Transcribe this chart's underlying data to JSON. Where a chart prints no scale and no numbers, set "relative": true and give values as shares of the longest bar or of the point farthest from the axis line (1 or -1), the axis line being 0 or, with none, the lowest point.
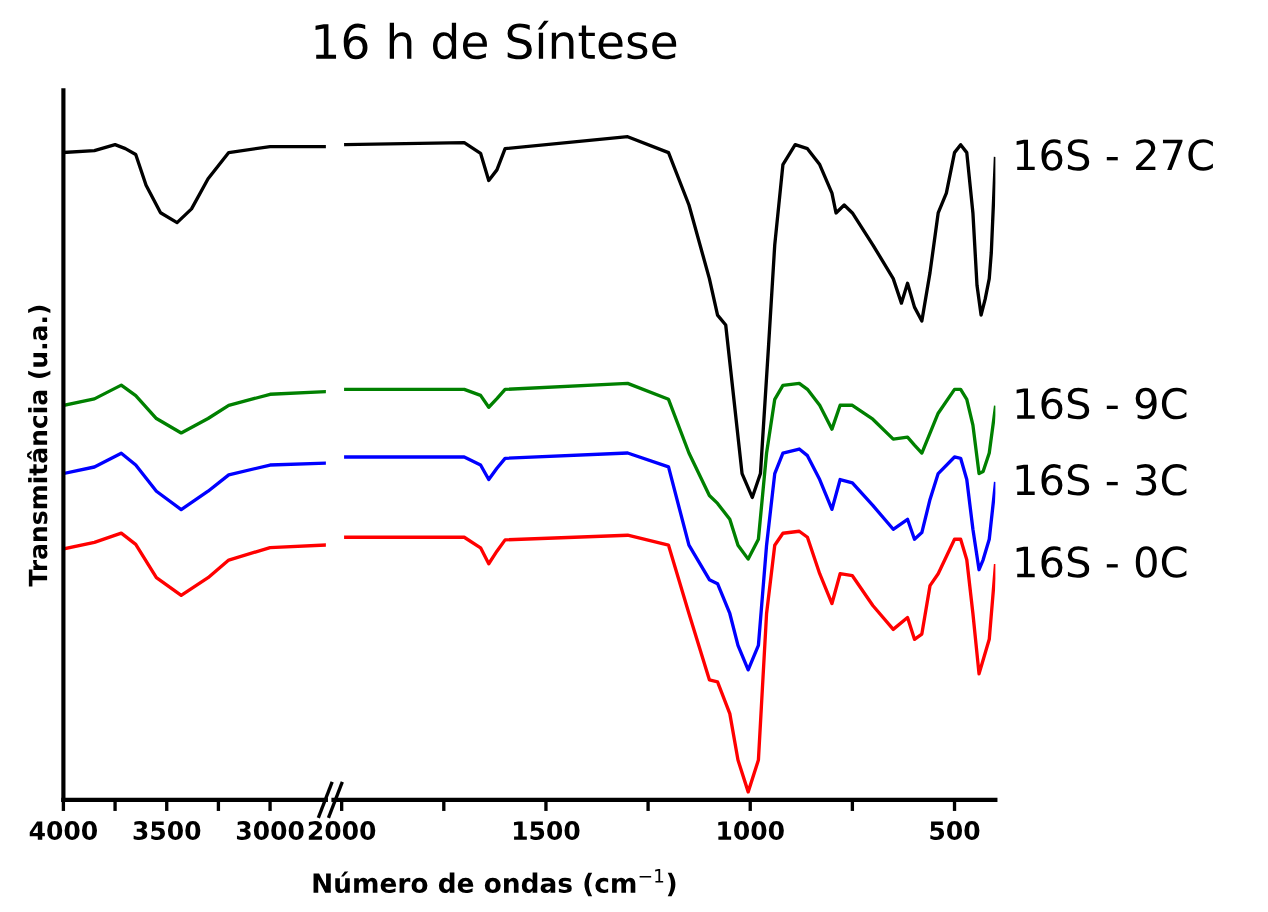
{
  "chart_data": [
    {
      "type": "line",
      "ylabel": "Transmitância (u.a.)",
      "relative": true,
      "xlim": [
        4000,
        2730
      ],
      "xticks": [
        4000,
        {
          "value": 3750,
          "label": null
        },
        3500,
        {
          "value": 3250,
          "label": null
        },
        3000
      ],
      "series": [
        {
          "color": "#000000",
          "x": [
            4000,
            3850,
            3750,
            3700,
            3650,
            3600,
            3530,
            3450,
            3380,
            3300,
            3200,
            3000,
            2730
          ],
          "values": [
            0.988,
            0.991,
            1.0,
            0.994,
            0.985,
            0.938,
            0.896,
            0.881,
            0.902,
            0.948,
            0.988,
            0.997,
            0.997
          ]
        },
        {
          "color": "#008000",
          "x": [
            4000,
            3850,
            3720,
            3650,
            3550,
            3430,
            3300,
            3200,
            3000,
            2730
          ],
          "values": [
            0.602,
            0.612,
            0.633,
            0.617,
            0.582,
            0.56,
            0.582,
            0.602,
            0.619,
            0.623
          ]
        },
        {
          "color": "#0000ff",
          "x": [
            4000,
            3850,
            3720,
            3650,
            3550,
            3430,
            3300,
            3200,
            3000,
            2730
          ],
          "values": [
            0.498,
            0.508,
            0.529,
            0.511,
            0.471,
            0.443,
            0.471,
            0.496,
            0.511,
            0.514
          ]
        },
        {
          "color": "#ff0000",
          "x": [
            4000,
            3850,
            3720,
            3650,
            3550,
            3430,
            3300,
            3200,
            3000,
            2730
          ],
          "values": [
            0.383,
            0.393,
            0.407,
            0.39,
            0.339,
            0.312,
            0.339,
            0.366,
            0.385,
            0.389
          ]
        }
      ]
    },
    {
      "type": "line",
      "title": "16 h de Síntese",
      "xlabel": "Número de ondas (cm$^{−1}$)",
      "relative": true,
      "xlim": [
        2020,
        400
      ],
      "xticks": [
        2000,
        {
          "value": 1750,
          "label": null
        },
        1500,
        {
          "value": 1250,
          "label": null
        },
        1000,
        {
          "value": 750,
          "label": null
        },
        500
      ],
      "series": [
        {
          "name": "16S - 27C",
          "color": "#000000",
          "x": [
            1990,
            1700,
            1660,
            1640,
            1620,
            1600,
            1300,
            1200,
            1150,
            1100,
            1080,
            1060,
            1040,
            1020,
            995,
            975,
            955,
            940,
            920,
            890,
            860,
            830,
            800,
            790,
            770,
            750,
            700,
            650,
            630,
            615,
            598,
            580,
            560,
            540,
            520,
            500,
            485,
            470,
            455,
            445,
            435,
            425,
            415,
            410,
            400
          ],
          "values": [
            0.988,
            0.991,
            0.975,
            0.934,
            0.95,
            0.982,
            1.0,
            0.976,
            0.897,
            0.786,
            0.731,
            0.716,
            0.604,
            0.492,
            0.456,
            0.492,
            0.686,
            0.837,
            0.958,
            0.988,
            0.982,
            0.958,
            0.915,
            0.885,
            0.897,
            0.885,
            0.837,
            0.786,
            0.749,
            0.779,
            0.743,
            0.722,
            0.795,
            0.885,
            0.915,
            0.976,
            0.988,
            0.976,
            0.885,
            0.776,
            0.731,
            0.755,
            0.786,
            0.825,
            0.967
          ]
        },
        {
          "name": "16S - 9C",
          "color": "#008000",
          "x": [
            1990,
            1700,
            1660,
            1640,
            1620,
            1600,
            1300,
            1200,
            1150,
            1100,
            1080,
            1050,
            1030,
            1005,
            980,
            960,
            940,
            920,
            880,
            860,
            830,
            800,
            780,
            750,
            700,
            650,
            615,
            598,
            580,
            560,
            540,
            500,
            485,
            470,
            455,
            440,
            430,
            415,
            400
          ],
          "values": [
            0.619,
            0.619,
            0.61,
            0.592,
            0.605,
            0.619,
            0.628,
            0.604,
            0.523,
            0.459,
            0.447,
            0.423,
            0.384,
            0.363,
            0.393,
            0.523,
            0.604,
            0.625,
            0.628,
            0.619,
            0.595,
            0.559,
            0.595,
            0.595,
            0.574,
            0.544,
            0.547,
            0.535,
            0.523,
            0.553,
            0.583,
            0.619,
            0.619,
            0.604,
            0.565,
            0.492,
            0.495,
            0.523,
            0.592
          ]
        },
        {
          "name": "16S - 3C",
          "color": "#0000ff",
          "x": [
            1990,
            1700,
            1660,
            1640,
            1620,
            1600,
            1300,
            1200,
            1150,
            1100,
            1080,
            1050,
            1030,
            1005,
            980,
            960,
            940,
            920,
            880,
            860,
            830,
            800,
            780,
            750,
            700,
            650,
            615,
            598,
            580,
            560,
            540,
            500,
            485,
            470,
            455,
            440,
            430,
            415,
            400
          ],
          "values": [
            0.517,
            0.517,
            0.505,
            0.483,
            0.5,
            0.515,
            0.523,
            0.502,
            0.384,
            0.332,
            0.326,
            0.281,
            0.233,
            0.196,
            0.233,
            0.384,
            0.492,
            0.523,
            0.529,
            0.519,
            0.483,
            0.438,
            0.483,
            0.478,
            0.444,
            0.408,
            0.423,
            0.393,
            0.403,
            0.453,
            0.492,
            0.517,
            0.515,
            0.483,
            0.408,
            0.347,
            0.362,
            0.393,
            0.477
          ]
        },
        {
          "name": "16S - 0C",
          "color": "#ff0000",
          "x": [
            1990,
            1700,
            1660,
            1640,
            1620,
            1600,
            1300,
            1200,
            1150,
            1100,
            1080,
            1050,
            1030,
            1005,
            980,
            960,
            940,
            920,
            880,
            860,
            830,
            800,
            780,
            750,
            700,
            650,
            615,
            598,
            580,
            560,
            540,
            500,
            485,
            470,
            455,
            440,
            430,
            415,
            400
          ],
          "values": [
            0.396,
            0.396,
            0.38,
            0.356,
            0.375,
            0.392,
            0.399,
            0.384,
            0.281,
            0.181,
            0.178,
            0.13,
            0.06,
            0.012,
            0.06,
            0.281,
            0.384,
            0.402,
            0.405,
            0.396,
            0.341,
            0.296,
            0.341,
            0.338,
            0.293,
            0.257,
            0.275,
            0.242,
            0.25,
            0.323,
            0.341,
            0.393,
            0.393,
            0.362,
            0.281,
            0.19,
            0.211,
            0.242,
            0.353
          ]
        }
      ]
    }
  ]
}
